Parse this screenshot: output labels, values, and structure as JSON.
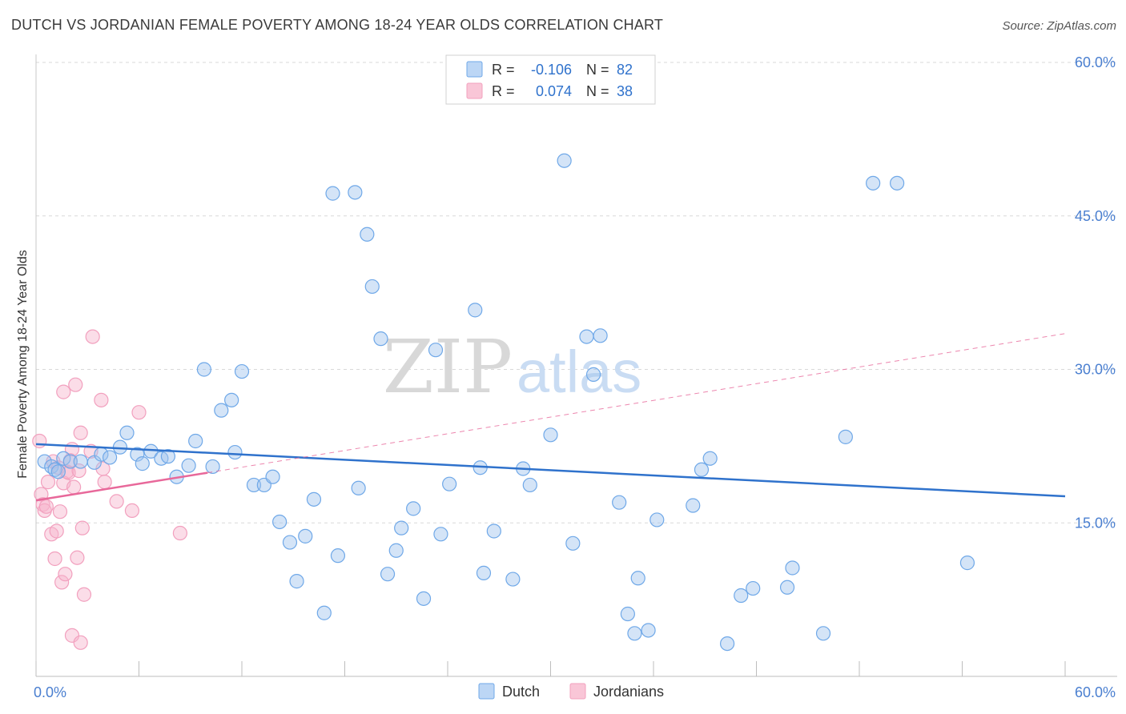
{
  "chart_data": {
    "type": "scatter",
    "title": "DUTCH VS JORDANIAN FEMALE POVERTY AMONG 18-24 YEAR OLDS CORRELATION CHART",
    "source": "Source: ZipAtlas.com",
    "ylabel": "Female Poverty Among 18-24 Year Olds",
    "xlabel": "",
    "xlim": [
      0,
      60
    ],
    "ylim": [
      0,
      60
    ],
    "y_ticks": [
      15,
      30,
      45,
      60
    ],
    "y_tick_labels": [
      "15.0%",
      "30.0%",
      "45.0%",
      "60.0%"
    ],
    "x_tick_labels": [
      "0.0%",
      "60.0%"
    ],
    "grid": true,
    "legend_position": "bottom-center",
    "colors": {
      "dutch": "#6fa8e8",
      "jordanians": "#f2a0be",
      "dutch_line": "#2f72cc",
      "jordanians_line": "#e8689a",
      "tick_text": "#4a7fd0"
    },
    "stats": [
      {
        "series": "Dutch",
        "r_label": "R =",
        "r_value": "-0.106",
        "n_label": "N =",
        "n_value": "82"
      },
      {
        "series": "Jordanians",
        "r_label": "R =",
        "r_value": "0.074",
        "n_label": "N =",
        "n_value": "38"
      }
    ],
    "watermark": "ZIPatlas",
    "series": [
      {
        "name": "Dutch",
        "trend": {
          "x": [
            0,
            60
          ],
          "y": [
            22.7,
            17.6
          ],
          "style": "solid"
        },
        "points": [
          [
            0.5,
            21.0
          ],
          [
            0.9,
            20.5
          ],
          [
            1.1,
            20.2
          ],
          [
            1.3,
            20.0
          ],
          [
            1.6,
            21.3
          ],
          [
            2.0,
            21.0
          ],
          [
            2.6,
            21.0
          ],
          [
            3.4,
            20.9
          ],
          [
            3.8,
            21.7
          ],
          [
            4.3,
            21.4
          ],
          [
            4.9,
            22.4
          ],
          [
            5.3,
            23.8
          ],
          [
            5.9,
            21.7
          ],
          [
            6.2,
            20.8
          ],
          [
            6.7,
            22.0
          ],
          [
            7.3,
            21.3
          ],
          [
            7.7,
            21.5
          ],
          [
            8.2,
            19.5
          ],
          [
            8.9,
            20.6
          ],
          [
            9.3,
            23.0
          ],
          [
            9.8,
            30.0
          ],
          [
            10.3,
            20.5
          ],
          [
            10.8,
            26.0
          ],
          [
            11.4,
            27.0
          ],
          [
            11.6,
            21.9
          ],
          [
            12.0,
            29.8
          ],
          [
            12.7,
            18.7
          ],
          [
            13.3,
            18.7
          ],
          [
            13.8,
            19.5
          ],
          [
            14.2,
            15.1
          ],
          [
            14.8,
            13.1
          ],
          [
            15.2,
            9.3
          ],
          [
            15.7,
            13.7
          ],
          [
            16.2,
            17.3
          ],
          [
            16.8,
            6.2
          ],
          [
            17.3,
            47.2
          ],
          [
            17.6,
            11.8
          ],
          [
            18.6,
            47.3
          ],
          [
            18.8,
            18.4
          ],
          [
            19.3,
            43.2
          ],
          [
            19.6,
            38.1
          ],
          [
            20.1,
            33.0
          ],
          [
            20.5,
            10.0
          ],
          [
            21.0,
            12.3
          ],
          [
            21.3,
            14.5
          ],
          [
            22.0,
            16.4
          ],
          [
            22.6,
            7.6
          ],
          [
            23.3,
            31.9
          ],
          [
            23.6,
            13.9
          ],
          [
            24.1,
            18.8
          ],
          [
            25.6,
            35.8
          ],
          [
            25.9,
            20.4
          ],
          [
            26.1,
            10.1
          ],
          [
            26.7,
            14.2
          ],
          [
            27.8,
            9.5
          ],
          [
            28.4,
            20.3
          ],
          [
            28.8,
            18.7
          ],
          [
            30.0,
            23.6
          ],
          [
            30.8,
            50.4
          ],
          [
            31.3,
            13.0
          ],
          [
            32.1,
            33.2
          ],
          [
            32.5,
            29.5
          ],
          [
            32.9,
            33.3
          ],
          [
            34.0,
            17.0
          ],
          [
            34.5,
            6.1
          ],
          [
            34.9,
            4.2
          ],
          [
            35.1,
            9.6
          ],
          [
            35.7,
            4.5
          ],
          [
            36.2,
            15.3
          ],
          [
            38.3,
            16.7
          ],
          [
            38.8,
            20.2
          ],
          [
            39.3,
            21.3
          ],
          [
            40.3,
            3.2
          ],
          [
            41.1,
            7.9
          ],
          [
            41.8,
            8.6
          ],
          [
            43.8,
            8.7
          ],
          [
            44.1,
            10.6
          ],
          [
            45.9,
            4.2
          ],
          [
            47.2,
            23.4
          ],
          [
            48.8,
            48.2
          ],
          [
            50.2,
            48.2
          ],
          [
            54.3,
            11.1
          ]
        ]
      },
      {
        "name": "Jordanians",
        "trend": {
          "x": [
            0,
            10
          ],
          "y": [
            17.2,
            19.9
          ],
          "style": "solid"
        },
        "trend_extension": {
          "x": [
            10,
            60
          ],
          "y": [
            19.9,
            33.5
          ],
          "style": "dashed"
        },
        "points": [
          [
            0.2,
            23.0
          ],
          [
            0.3,
            17.8
          ],
          [
            0.4,
            16.8
          ],
          [
            0.5,
            16.2
          ],
          [
            0.6,
            16.6
          ],
          [
            0.7,
            19.0
          ],
          [
            0.9,
            13.9
          ],
          [
            1.0,
            21.0
          ],
          [
            1.1,
            11.5
          ],
          [
            1.2,
            14.2
          ],
          [
            1.3,
            20.4
          ],
          [
            1.4,
            16.1
          ],
          [
            1.5,
            9.2
          ],
          [
            1.6,
            18.9
          ],
          [
            1.6,
            27.8
          ],
          [
            1.7,
            10.0
          ],
          [
            1.8,
            20.0
          ],
          [
            1.9,
            19.9
          ],
          [
            2.0,
            21.1
          ],
          [
            2.1,
            22.2
          ],
          [
            2.1,
            4.0
          ],
          [
            2.2,
            18.5
          ],
          [
            2.3,
            28.5
          ],
          [
            2.4,
            11.6
          ],
          [
            2.5,
            20.1
          ],
          [
            2.6,
            3.3
          ],
          [
            2.6,
            23.8
          ],
          [
            2.7,
            14.5
          ],
          [
            2.8,
            8.0
          ],
          [
            3.2,
            22.0
          ],
          [
            3.3,
            33.2
          ],
          [
            3.8,
            27.0
          ],
          [
            3.9,
            20.3
          ],
          [
            4.0,
            19.0
          ],
          [
            4.7,
            17.1
          ],
          [
            5.6,
            16.2
          ],
          [
            6.0,
            25.8
          ],
          [
            8.4,
            14.0
          ]
        ]
      }
    ]
  }
}
